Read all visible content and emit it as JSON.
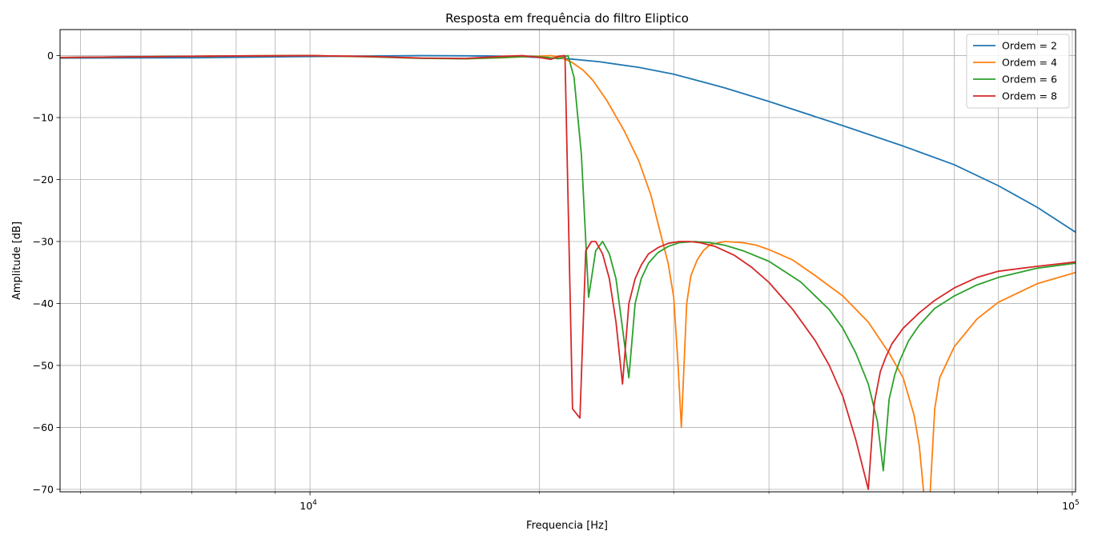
{
  "chart_data": {
    "type": "line",
    "title": "Resposta em frequência do filtro Eliptico",
    "xlabel": "Frequencia [Hz]",
    "ylabel": "Amplitude [dB]",
    "xscale": "log",
    "xlim": [
      4700,
      101000
    ],
    "ylim": [
      -70.4,
      4.2
    ],
    "x_ticks": [
      {
        "value": 10000,
        "base": "10",
        "exp": "4"
      },
      {
        "value": 100000,
        "base": "10",
        "exp": "5"
      }
    ],
    "y_ticks": [
      {
        "value": 0,
        "label": "0"
      },
      {
        "value": -10,
        "label": "−10"
      },
      {
        "value": -20,
        "label": "−20"
      },
      {
        "value": -30,
        "label": "−30"
      },
      {
        "value": -40,
        "label": "−40"
      },
      {
        "value": -50,
        "label": "−50"
      },
      {
        "value": -60,
        "label": "−60"
      },
      {
        "value": -70,
        "label": "−70"
      }
    ],
    "grid": true,
    "legend_position": "top-right",
    "series": [
      {
        "name": "Ordem = 2",
        "color": "#1f77b4",
        "x": [
          4700,
          7000,
          10000,
          14000,
          17000,
          19000,
          20000,
          21000,
          22000,
          24000,
          27000,
          30000,
          35000,
          40000,
          50000,
          60000,
          70000,
          80000,
          90000,
          101000
        ],
        "y": [
          -0.4,
          -0.35,
          -0.15,
          0,
          -0.05,
          -0.2,
          -0.3,
          -0.4,
          -0.55,
          -1.0,
          -1.9,
          -3.0,
          -5.2,
          -7.4,
          -11.3,
          -14.6,
          -17.6,
          -21.0,
          -24.5,
          -28.5
        ]
      },
      {
        "name": "Ordem = 4",
        "color": "#ff7f0e",
        "x": [
          4700,
          8000,
          10000,
          12000,
          14000,
          16000,
          17500,
          19000,
          20000,
          20700,
          21300,
          22000,
          22800,
          23500,
          24500,
          25800,
          27000,
          28000,
          28800,
          29500,
          30000,
          30400,
          30700,
          31200,
          31600,
          32200,
          32800,
          33500,
          35000,
          37000,
          38500,
          40000,
          43000,
          46000,
          50000,
          54000,
          57500,
          60000,
          62000,
          63000,
          64000,
          65000,
          66000,
          67000,
          70000,
          75000,
          80000,
          90000,
          101000
        ],
        "y": [
          -0.3,
          -0.05,
          0,
          -0.15,
          -0.4,
          -0.5,
          -0.4,
          -0.2,
          -0.1,
          0,
          -0.3,
          -1.0,
          -2.3,
          -4.0,
          -7.2,
          -12.0,
          -17.0,
          -22.5,
          -28.5,
          -33.5,
          -39.0,
          -50.0,
          -60.0,
          -40.0,
          -35.5,
          -33.0,
          -31.5,
          -30.5,
          -30.0,
          -30.2,
          -30.6,
          -31.3,
          -33.0,
          -35.5,
          -38.8,
          -43.0,
          -48.0,
          -52.0,
          -58.0,
          -63.0,
          -72.0,
          -72.0,
          -57.0,
          -52.0,
          -47.0,
          -42.5,
          -39.8,
          -36.8,
          -35.0
        ]
      },
      {
        "name": "Ordem = 6",
        "color": "#2ca02c",
        "x": [
          4700,
          8000,
          10000,
          12000,
          14000,
          16000,
          18000,
          19500,
          20500,
          21200,
          21800,
          22200,
          22700,
          23200,
          23700,
          24200,
          24700,
          25200,
          25700,
          26200,
          26700,
          27200,
          27800,
          28600,
          29500,
          30500,
          32000,
          33500,
          35000,
          37000,
          40000,
          44000,
          48000,
          50000,
          52000,
          54000,
          55500,
          56500,
          57500,
          58500,
          59500,
          61000,
          63000,
          66000,
          70000,
          75000,
          80000,
          90000,
          101000
        ],
        "y": [
          -0.3,
          -0.05,
          0,
          -0.2,
          -0.45,
          -0.5,
          -0.3,
          -0.1,
          -0.3,
          -0.5,
          0,
          -3.5,
          -16.0,
          -39.0,
          -31.5,
          -30.0,
          -32.0,
          -36.0,
          -44.0,
          -52.0,
          -40.0,
          -36.0,
          -33.5,
          -31.8,
          -30.8,
          -30.2,
          -30.0,
          -30.2,
          -30.6,
          -31.5,
          -33.2,
          -36.5,
          -41.0,
          -44.0,
          -48.0,
          -53.0,
          -59.0,
          -67.0,
          -55.5,
          -51.5,
          -49.0,
          -46.0,
          -43.5,
          -40.8,
          -38.8,
          -37.0,
          -35.8,
          -34.3,
          -33.5
        ]
      },
      {
        "name": "Ordem = 8",
        "color": "#d62728",
        "x": [
          4700,
          8000,
          10000,
          12000,
          14000,
          16000,
          18000,
          19000,
          20000,
          20700,
          21200,
          21600,
          22100,
          22600,
          23000,
          23400,
          23700,
          24200,
          24700,
          25200,
          25700,
          26200,
          26700,
          27200,
          27800,
          28600,
          29500,
          30500,
          31500,
          32500,
          34000,
          36000,
          38000,
          40000,
          43000,
          46000,
          48000,
          50000,
          52000,
          54000,
          55000,
          56000,
          57000,
          58000,
          60000,
          63000,
          66000,
          70000,
          75000,
          80000,
          90000,
          101000
        ],
        "y": [
          -0.3,
          -0.05,
          0,
          -0.15,
          -0.4,
          -0.45,
          -0.1,
          0,
          -0.3,
          -0.6,
          -0.1,
          0,
          -57.0,
          -58.5,
          -31.5,
          -30.0,
          -30.0,
          -32.0,
          -36.0,
          -43.0,
          -53.0,
          -40.0,
          -36.0,
          -33.8,
          -32.0,
          -31.0,
          -30.3,
          -30.0,
          -30.0,
          -30.2,
          -30.8,
          -32.2,
          -34.2,
          -36.6,
          -41.0,
          -46.0,
          -50.0,
          -55.0,
          -62.0,
          -70.0,
          -56.0,
          -51.0,
          -48.5,
          -46.5,
          -44.0,
          -41.5,
          -39.5,
          -37.5,
          -35.8,
          -34.8,
          -34.0,
          -33.3
        ]
      }
    ]
  }
}
